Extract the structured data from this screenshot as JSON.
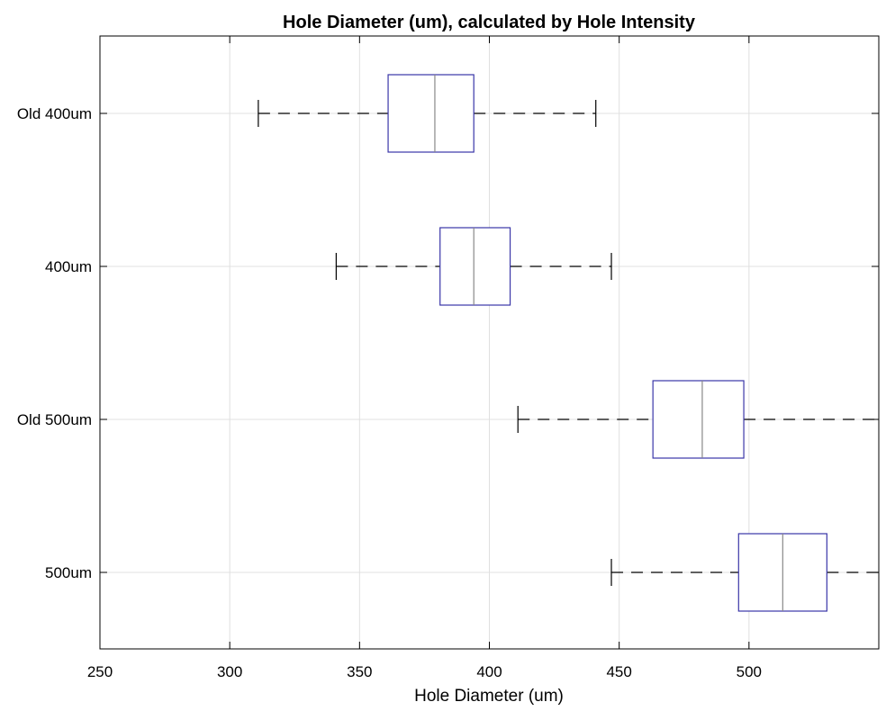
{
  "chart_data": {
    "type": "boxplot",
    "orientation": "horizontal",
    "title": "Hole Diameter (um), calculated by Hole Intensity",
    "xlabel": "Hole Diameter (um)",
    "ylabel": "",
    "xlim": [
      250,
      550
    ],
    "xticks": [
      "250",
      "300",
      "350",
      "400",
      "450",
      "500"
    ],
    "xtick_values": [
      250,
      300,
      350,
      400,
      450,
      500
    ],
    "grid": true,
    "categories": [
      "Old 400um",
      "400um",
      "Old 500um",
      "500um"
    ],
    "boxes": [
      {
        "label": "Old 400um",
        "whisker_low": 311,
        "q1": 361,
        "median": 379,
        "q3": 394,
        "whisker_high": 441
      },
      {
        "label": "400um",
        "whisker_low": 341,
        "q1": 381,
        "median": 394,
        "q3": 408,
        "whisker_high": 447
      },
      {
        "label": "Old 500um",
        "whisker_low": 411,
        "q1": 463,
        "median": 482,
        "q3": 498,
        "whisker_high": 550
      },
      {
        "label": "500um",
        "whisker_low": 447,
        "q1": 496,
        "median": 513,
        "q3": 530,
        "whisker_high": 550
      }
    ],
    "colors": {
      "box": "#3a36a8",
      "median": "#888888",
      "whisker": "#000000",
      "grid": "#e0e0e0",
      "axis": "#000000"
    }
  }
}
